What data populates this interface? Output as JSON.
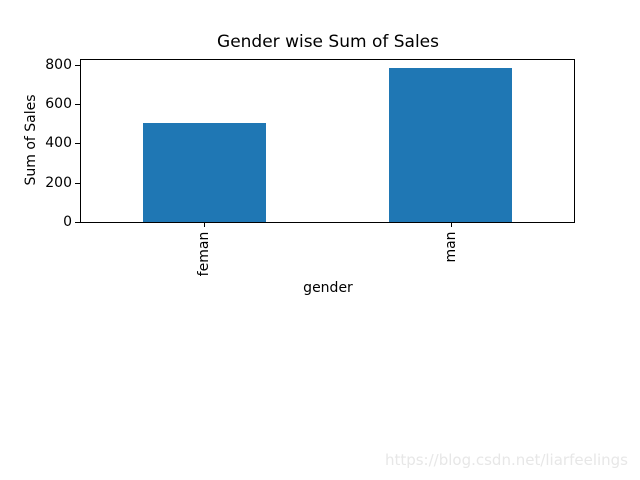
{
  "figure": {
    "background": "#ffffff",
    "watermark": "https://blog.csdn.net/liarfeelings",
    "watermark_color": "#e7e7e7"
  },
  "chart_data": {
    "type": "bar",
    "title": "Gender wise Sum of Sales",
    "xlabel": "gender",
    "ylabel": "Sum of Sales",
    "categories": [
      "feman",
      "man"
    ],
    "values": [
      505,
      785
    ],
    "yticks": [
      0,
      200,
      400,
      600,
      800
    ],
    "ylim": [
      0,
      825
    ],
    "bar_color": "#1f77b4",
    "bar_width_fraction": 0.5,
    "xticklabel_rotation": 90,
    "grid": false,
    "legend": false
  }
}
